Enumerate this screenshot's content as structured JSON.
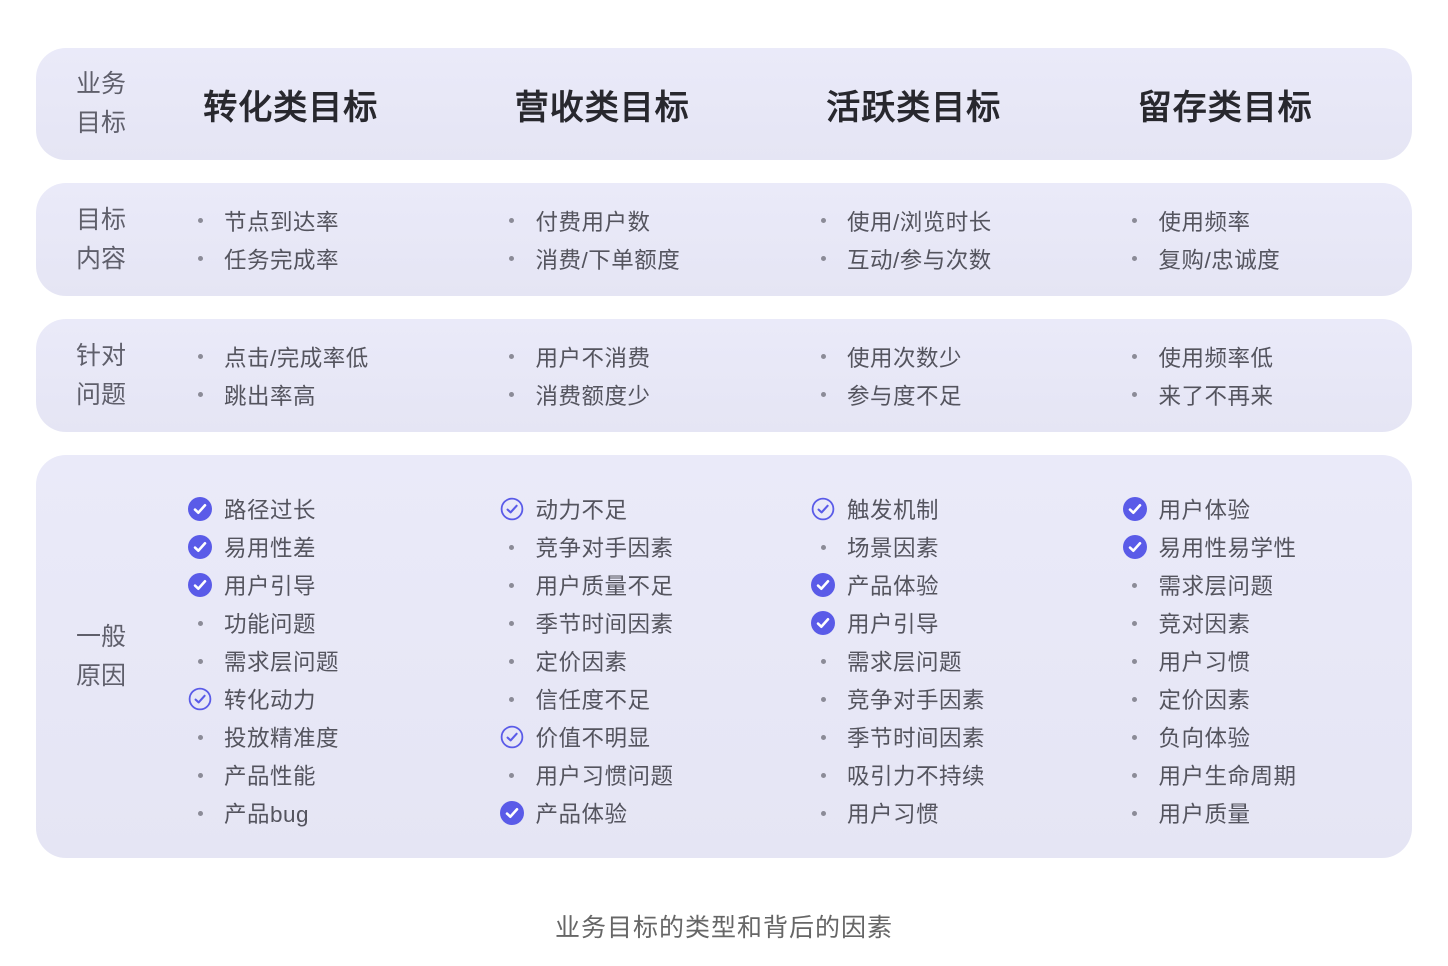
{
  "caption": "业务目标的类型和背后的因素",
  "colors": {
    "accent": "#5A5BE8",
    "band_background": "#E8E8F7",
    "header_text": "#28282E",
    "item_text": "#54545E"
  },
  "icons": {
    "check_filled": "check-filled-icon",
    "check_outline": "check-outline-icon",
    "bullet": "bullet-icon"
  },
  "table": {
    "corner_label_lines": [
      "业务",
      "目标"
    ],
    "columns": [
      "转化类目标",
      "营收类目标",
      "活跃类目标",
      "留存类目标"
    ],
    "rows": [
      {
        "label_lines": [
          "目标",
          "内容"
        ],
        "cells": [
          {
            "items": [
              {
                "marker": "bullet",
                "text": "节点到达率"
              },
              {
                "marker": "bullet",
                "text": "任务完成率"
              }
            ]
          },
          {
            "items": [
              {
                "marker": "bullet",
                "text": "付费用户数"
              },
              {
                "marker": "bullet",
                "text": "消费/下单额度"
              }
            ]
          },
          {
            "items": [
              {
                "marker": "bullet",
                "text": "使用/浏览时长"
              },
              {
                "marker": "bullet",
                "text": "互动/参与次数"
              }
            ]
          },
          {
            "items": [
              {
                "marker": "bullet",
                "text": "使用频率"
              },
              {
                "marker": "bullet",
                "text": "复购/忠诚度"
              }
            ]
          }
        ]
      },
      {
        "label_lines": [
          "针对",
          "问题"
        ],
        "cells": [
          {
            "items": [
              {
                "marker": "bullet",
                "text": "点击/完成率低"
              },
              {
                "marker": "bullet",
                "text": "跳出率高"
              }
            ]
          },
          {
            "items": [
              {
                "marker": "bullet",
                "text": "用户不消费"
              },
              {
                "marker": "bullet",
                "text": "消费额度少"
              }
            ]
          },
          {
            "items": [
              {
                "marker": "bullet",
                "text": "使用次数少"
              },
              {
                "marker": "bullet",
                "text": "参与度不足"
              }
            ]
          },
          {
            "items": [
              {
                "marker": "bullet",
                "text": "使用频率低"
              },
              {
                "marker": "bullet",
                "text": "来了不再来"
              }
            ]
          }
        ]
      },
      {
        "label_lines": [
          "一般",
          "原因"
        ],
        "cells": [
          {
            "items": [
              {
                "marker": "check-filled",
                "text": "路径过长"
              },
              {
                "marker": "check-filled",
                "text": "易用性差"
              },
              {
                "marker": "check-filled",
                "text": "用户引导"
              },
              {
                "marker": "bullet",
                "text": "功能问题"
              },
              {
                "marker": "bullet",
                "text": "需求层问题"
              },
              {
                "marker": "check-outline",
                "text": "转化动力"
              },
              {
                "marker": "bullet",
                "text": "投放精准度"
              },
              {
                "marker": "bullet",
                "text": "产品性能"
              },
              {
                "marker": "bullet",
                "text": "产品bug"
              }
            ]
          },
          {
            "items": [
              {
                "marker": "check-outline",
                "text": "动力不足"
              },
              {
                "marker": "bullet",
                "text": "竞争对手因素"
              },
              {
                "marker": "bullet",
                "text": "用户质量不足"
              },
              {
                "marker": "bullet",
                "text": "季节时间因素"
              },
              {
                "marker": "bullet",
                "text": "定价因素"
              },
              {
                "marker": "bullet",
                "text": "信任度不足"
              },
              {
                "marker": "check-outline",
                "text": "价值不明显"
              },
              {
                "marker": "bullet",
                "text": "用户习惯问题"
              },
              {
                "marker": "check-filled",
                "text": "产品体验"
              }
            ]
          },
          {
            "items": [
              {
                "marker": "check-outline",
                "text": "触发机制"
              },
              {
                "marker": "bullet",
                "text": "场景因素"
              },
              {
                "marker": "check-filled",
                "text": "产品体验"
              },
              {
                "marker": "check-filled",
                "text": "用户引导"
              },
              {
                "marker": "bullet",
                "text": "需求层问题"
              },
              {
                "marker": "bullet",
                "text": "竞争对手因素"
              },
              {
                "marker": "bullet",
                "text": "季节时间因素"
              },
              {
                "marker": "bullet",
                "text": "吸引力不持续"
              },
              {
                "marker": "bullet",
                "text": "用户习惯"
              }
            ]
          },
          {
            "items": [
              {
                "marker": "check-filled",
                "text": "用户体验"
              },
              {
                "marker": "check-filled",
                "text": "易用性易学性"
              },
              {
                "marker": "bullet",
                "text": "需求层问题"
              },
              {
                "marker": "bullet",
                "text": "竞对因素"
              },
              {
                "marker": "bullet",
                "text": "用户习惯"
              },
              {
                "marker": "bullet",
                "text": "定价因素"
              },
              {
                "marker": "bullet",
                "text": "负向体验"
              },
              {
                "marker": "bullet",
                "text": "用户生命周期"
              },
              {
                "marker": "bullet",
                "text": "用户质量"
              }
            ]
          }
        ]
      }
    ]
  }
}
